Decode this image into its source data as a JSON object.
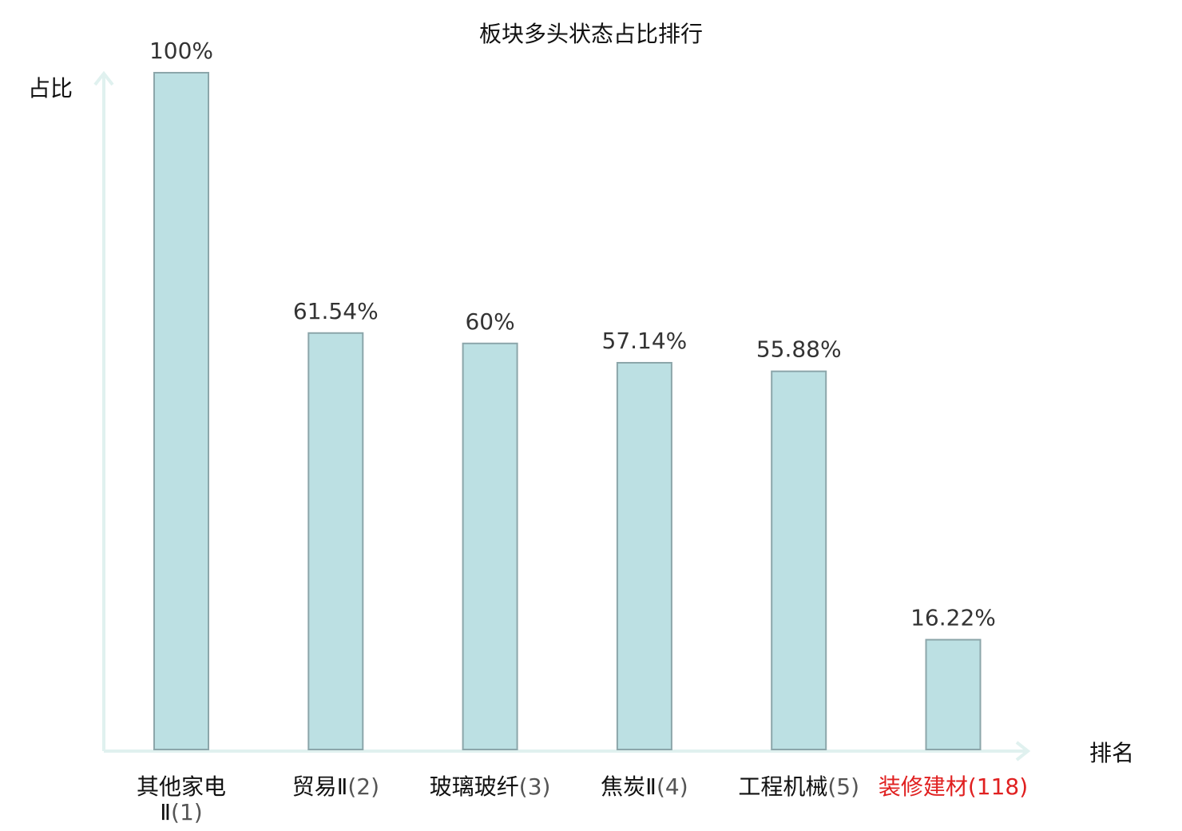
{
  "chart_data": {
    "type": "bar",
    "title": "板块多头状态占比排行",
    "xlabel": "排名",
    "ylabel": "占比",
    "ylim": [
      0,
      100
    ],
    "grid": false,
    "categories": [
      {
        "name": "其他家电Ⅱ",
        "rank": "(1)"
      },
      {
        "name": "贸易Ⅱ",
        "rank": "(2)"
      },
      {
        "name": "玻璃玻纤",
        "rank": "(3)"
      },
      {
        "name": "焦炭Ⅱ",
        "rank": "(4)"
      },
      {
        "name": "工程机械",
        "rank": "(5)"
      },
      {
        "name": "装修建材",
        "rank": "(118)"
      }
    ],
    "values": [
      100,
      61.54,
      60,
      57.14,
      55.88,
      16.22
    ],
    "value_labels": [
      "100%",
      "61.54%",
      "60%",
      "57.14%",
      "55.88%",
      "16.22%"
    ],
    "highlighted_category": "装修建材",
    "colors": {
      "bar_fill": "#bce0e3",
      "bar_stroke": "#8ca6aa",
      "axis": "#e0f1ef",
      "highlight_text": "#e02020",
      "text": "#111111",
      "rank_text": "#555555",
      "value_text": "#333333"
    }
  }
}
